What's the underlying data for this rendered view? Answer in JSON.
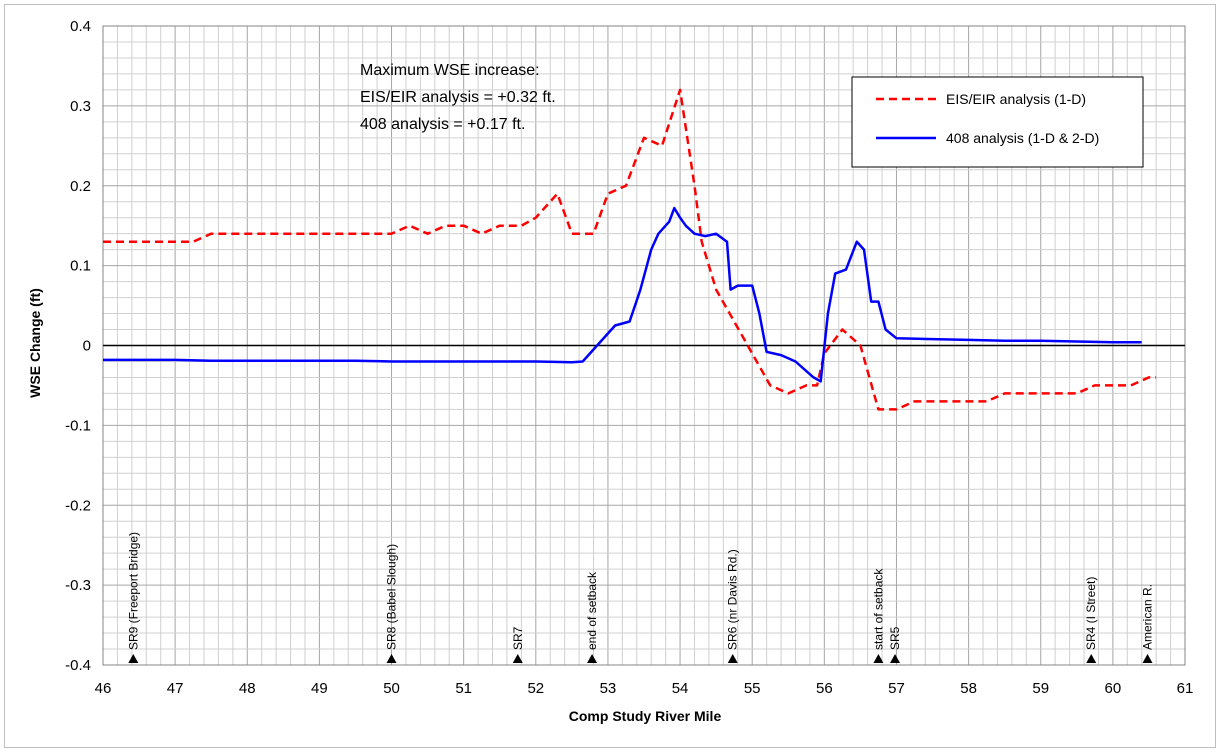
{
  "chart_data": {
    "type": "line",
    "title": "",
    "xlabel": "Comp Study River Mile",
    "ylabel": "WSE Change (ft)",
    "xlim": [
      46,
      61
    ],
    "ylim": [
      -0.4,
      0.4
    ],
    "xticks": [
      "46",
      "47",
      "48",
      "49",
      "50",
      "51",
      "52",
      "53",
      "54",
      "55",
      "56",
      "57",
      "58",
      "59",
      "60",
      "61"
    ],
    "yticks": [
      "0.4",
      "0.3",
      "0.2",
      "0.1",
      "0",
      "-0.1",
      "-0.2",
      "-0.3",
      "-0.4"
    ],
    "grid": true,
    "legend_position": "top-right",
    "annotation_lines": [
      "Maximum WSE increase:",
      "EIS/EIR analysis = +0.32 ft.",
      "408 analysis  = +0.17 ft."
    ],
    "series": [
      {
        "name": "EIS/EIR analysis (1-D)",
        "color": "#ff0000",
        "dash": "dashed",
        "points": [
          [
            46.0,
            0.13
          ],
          [
            47.25,
            0.13
          ],
          [
            47.5,
            0.14
          ],
          [
            48.0,
            0.14
          ],
          [
            49.0,
            0.14
          ],
          [
            50.0,
            0.14
          ],
          [
            50.25,
            0.15
          ],
          [
            50.5,
            0.14
          ],
          [
            50.75,
            0.15
          ],
          [
            51.0,
            0.15
          ],
          [
            51.25,
            0.14
          ],
          [
            51.5,
            0.15
          ],
          [
            51.8,
            0.15
          ],
          [
            52.0,
            0.16
          ],
          [
            52.3,
            0.19
          ],
          [
            52.5,
            0.14
          ],
          [
            52.8,
            0.14
          ],
          [
            53.0,
            0.19
          ],
          [
            53.25,
            0.2
          ],
          [
            53.5,
            0.26
          ],
          [
            53.75,
            0.25
          ],
          [
            54.0,
            0.32
          ],
          [
            54.2,
            0.2
          ],
          [
            54.3,
            0.13
          ],
          [
            54.5,
            0.07
          ],
          [
            54.75,
            0.03
          ],
          [
            55.0,
            -0.01
          ],
          [
            55.25,
            -0.05
          ],
          [
            55.5,
            -0.06
          ],
          [
            55.75,
            -0.05
          ],
          [
            55.9,
            -0.05
          ],
          [
            56.0,
            -0.01
          ],
          [
            56.25,
            0.02
          ],
          [
            56.5,
            0.0
          ],
          [
            56.75,
            -0.08
          ],
          [
            57.0,
            -0.08
          ],
          [
            57.25,
            -0.07
          ],
          [
            57.5,
            -0.07
          ],
          [
            58.0,
            -0.07
          ],
          [
            58.25,
            -0.07
          ],
          [
            58.5,
            -0.06
          ],
          [
            59.0,
            -0.06
          ],
          [
            59.5,
            -0.06
          ],
          [
            59.75,
            -0.05
          ],
          [
            60.0,
            -0.05
          ],
          [
            60.25,
            -0.05
          ],
          [
            60.5,
            -0.04
          ],
          [
            60.6,
            -0.04
          ]
        ]
      },
      {
        "name": "408 analysis (1-D & 2-D)",
        "color": "#0000ff",
        "dash": "solid",
        "points": [
          [
            46.0,
            -0.018
          ],
          [
            47.0,
            -0.018
          ],
          [
            47.5,
            -0.019
          ],
          [
            48.0,
            -0.019
          ],
          [
            49.0,
            -0.019
          ],
          [
            49.5,
            -0.019
          ],
          [
            50.0,
            -0.02
          ],
          [
            51.0,
            -0.02
          ],
          [
            52.0,
            -0.02
          ],
          [
            52.5,
            -0.021
          ],
          [
            52.65,
            -0.02
          ],
          [
            52.75,
            -0.01
          ],
          [
            52.85,
            0.0
          ],
          [
            52.95,
            0.01
          ],
          [
            53.1,
            0.025
          ],
          [
            53.3,
            0.03
          ],
          [
            53.45,
            0.07
          ],
          [
            53.6,
            0.12
          ],
          [
            53.7,
            0.14
          ],
          [
            53.85,
            0.155
          ],
          [
            53.92,
            0.172
          ],
          [
            54.0,
            0.16
          ],
          [
            54.08,
            0.15
          ],
          [
            54.2,
            0.14
          ],
          [
            54.35,
            0.137
          ],
          [
            54.5,
            0.14
          ],
          [
            54.65,
            0.13
          ],
          [
            54.7,
            0.07
          ],
          [
            54.8,
            0.075
          ],
          [
            55.0,
            0.075
          ],
          [
            55.1,
            0.04
          ],
          [
            55.2,
            -0.008
          ],
          [
            55.4,
            -0.012
          ],
          [
            55.6,
            -0.02
          ],
          [
            55.85,
            -0.04
          ],
          [
            55.95,
            -0.045
          ],
          [
            56.05,
            0.04
          ],
          [
            56.15,
            0.09
          ],
          [
            56.3,
            0.095
          ],
          [
            56.45,
            0.13
          ],
          [
            56.55,
            0.12
          ],
          [
            56.65,
            0.055
          ],
          [
            56.75,
            0.055
          ],
          [
            56.85,
            0.02
          ],
          [
            57.0,
            0.009
          ],
          [
            57.5,
            0.008
          ],
          [
            58.0,
            0.007
          ],
          [
            58.5,
            0.006
          ],
          [
            59.0,
            0.006
          ],
          [
            59.5,
            0.005
          ],
          [
            60.0,
            0.004
          ],
          [
            60.4,
            0.004
          ]
        ]
      }
    ],
    "markers": [
      {
        "x": 46.42,
        "label": "SR9 (Freeport Bridge)"
      },
      {
        "x": 50.0,
        "label": "SR8 (Babel Slough)"
      },
      {
        "x": 51.75,
        "label": "SR7"
      },
      {
        "x": 52.78,
        "label": "end of setback"
      },
      {
        "x": 54.73,
        "label": "SR6 (nr Davis Rd.)"
      },
      {
        "x": 56.75,
        "label": "start of setback"
      },
      {
        "x": 56.98,
        "label": "SR5"
      },
      {
        "x": 59.7,
        "label": "SR4 (I Street)"
      },
      {
        "x": 60.48,
        "label": "American R."
      }
    ]
  }
}
